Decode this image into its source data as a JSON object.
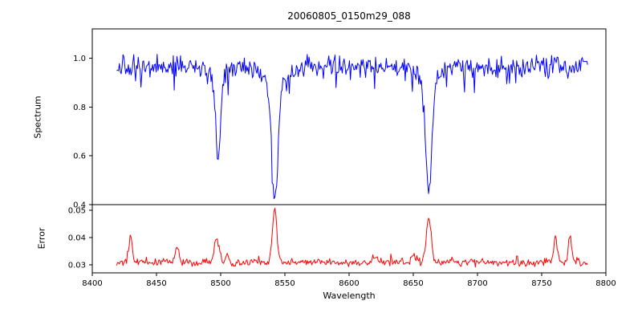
{
  "figure": {
    "title": "20060805_0150m29_088",
    "xlabel": "Wavelength",
    "background": "#ffffff",
    "axis_color": "#000000"
  },
  "chart_data": [
    {
      "id": "spectrum-panel",
      "type": "line",
      "title": "20060805_0150m29_088",
      "ylabel": "Spectrum",
      "color": "#0000ff",
      "grid": false,
      "legend": "none",
      "xlim": [
        8400,
        8800
      ],
      "ylim": [
        0.4,
        1.12
      ],
      "xticks": {
        "values": [
          8400,
          8450,
          8500,
          8550,
          8600,
          8650,
          8700,
          8750,
          8800
        ],
        "labels": [
          "8400",
          "8450",
          "8500",
          "8550",
          "8600",
          "8650",
          "8700",
          "8750",
          "8800"
        ]
      },
      "yticks": {
        "values": [
          0.4,
          0.6,
          0.8,
          1.0
        ],
        "labels": [
          "0.4",
          "0.6",
          "0.8",
          "1.0"
        ]
      },
      "x_data_range": [
        8419,
        8786
      ],
      "sample_step": 0.7,
      "continuum": 0.965,
      "noise_sigma": 0.021,
      "spike_prob": 0.04,
      "absorption_lines": [
        {
          "center": 8498.0,
          "min_flux": 0.6,
          "components": [
            {
              "depth": 0.33,
              "width": 1.7
            },
            {
              "depth": 0.05,
              "width": 4.5
            }
          ]
        },
        {
          "center": 8542.1,
          "min_flux": 0.4,
          "components": [
            {
              "depth": 0.465,
              "width": 2.3
            },
            {
              "depth": 0.09,
              "width": 8.0
            }
          ]
        },
        {
          "center": 8662.1,
          "min_flux": 0.44,
          "components": [
            {
              "depth": 0.45,
              "width": 2.2
            },
            {
              "depth": 0.08,
              "width": 7.0
            }
          ]
        }
      ]
    },
    {
      "id": "error-panel",
      "type": "line",
      "ylabel": "Error",
      "xlabel": "Wavelength",
      "color": "#ff0000",
      "grid": false,
      "legend": "none",
      "xlim": [
        8400,
        8800
      ],
      "ylim": [
        0.027,
        0.052
      ],
      "yticks": {
        "values": [
          0.03,
          0.04,
          0.05
        ],
        "labels": [
          "0.03",
          "0.04",
          "0.05"
        ]
      },
      "baseline": 0.0305,
      "noise_sigma": 0.0006,
      "peaks": [
        {
          "center": 8430,
          "height": 0.0092,
          "width": 1.2
        },
        {
          "center": 8466,
          "height": 0.0055,
          "width": 1.6
        },
        {
          "center": 8497,
          "height": 0.0085,
          "width": 1.8
        },
        {
          "center": 8505,
          "height": 0.0035,
          "width": 1.2
        },
        {
          "center": 8542,
          "height": 0.019,
          "width": 1.8
        },
        {
          "center": 8620,
          "height": 0.002,
          "width": 2.0
        },
        {
          "center": 8650,
          "height": 0.002,
          "width": 2.0
        },
        {
          "center": 8662,
          "height": 0.0165,
          "width": 1.8
        },
        {
          "center": 8761,
          "height": 0.0085,
          "width": 1.4
        },
        {
          "center": 8772,
          "height": 0.01,
          "width": 1.2
        }
      ]
    }
  ]
}
